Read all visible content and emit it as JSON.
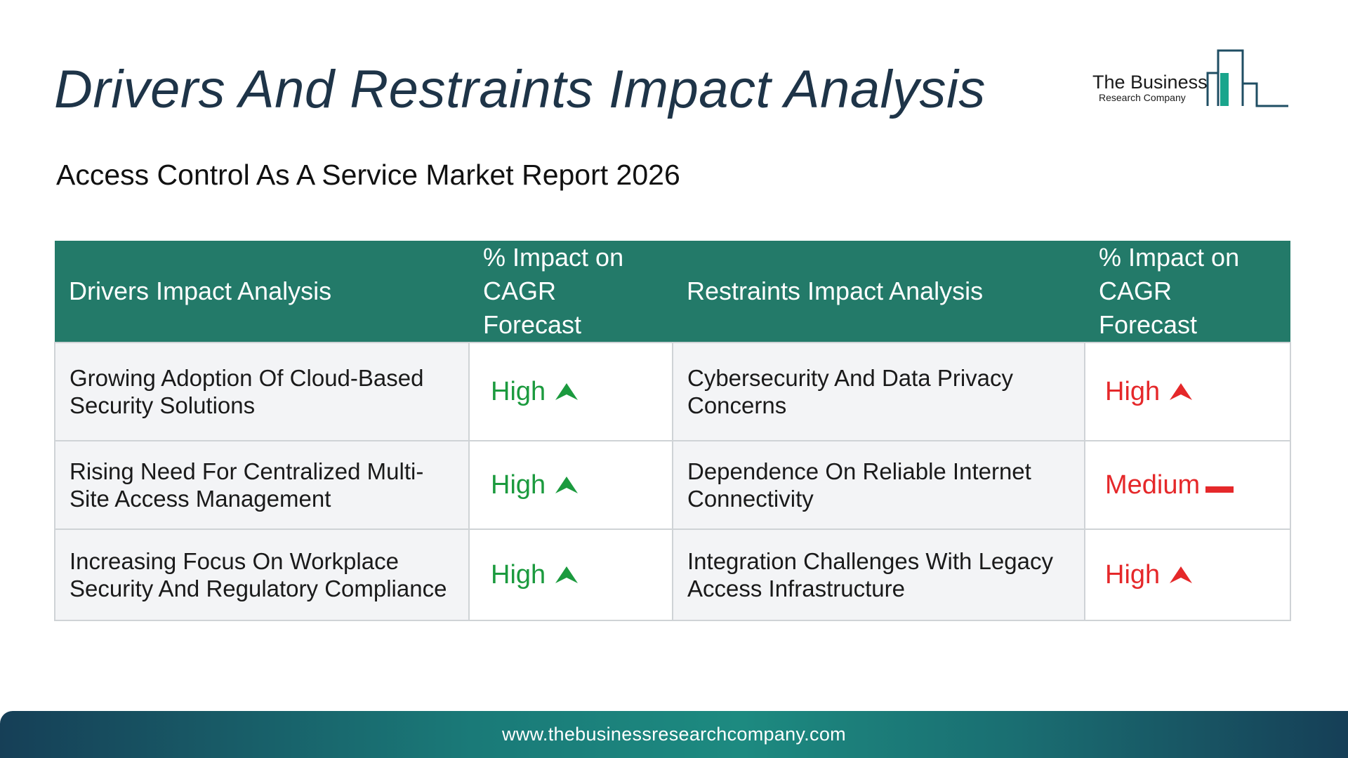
{
  "title": "Drivers And Restraints Impact Analysis",
  "subtitle": "Access Control As A Service Market Report 2026",
  "logo": {
    "name": "The Business",
    "tagline": "Research Company"
  },
  "table": {
    "headers": {
      "drivers": "Drivers Impact Analysis",
      "drivers_impact": "% Impact on CAGR Forecast",
      "restraints": "Restraints Impact Analysis",
      "restraints_impact": "% Impact on CAGR Forecast"
    },
    "rows": [
      {
        "driver": "Growing Adoption Of Cloud-Based Security Solutions",
        "driver_impact": "High",
        "restraint": "Cybersecurity And Data Privacy Concerns",
        "restraint_impact": "High"
      },
      {
        "driver": "Rising Need For Centralized Multi-Site Access Management",
        "driver_impact": "High",
        "restraint": "Dependence On Reliable Internet Connectivity",
        "restraint_impact": "Medium"
      },
      {
        "driver": "Increasing Focus On Workplace Security And Regulatory Compliance",
        "driver_impact": "High",
        "restraint": "Integration Challenges With Legacy Access Infrastructure",
        "restraint_impact": "High"
      }
    ]
  },
  "icons": {
    "up": "arrow-up-icon",
    "medium": "dash-icon"
  },
  "colors": {
    "header_bg": "#237a69",
    "title": "#1e3448",
    "positive": "#1b9a3e",
    "negative": "#e5282a"
  },
  "footer": {
    "url": "www.thebusinessresearchcompany.com"
  }
}
